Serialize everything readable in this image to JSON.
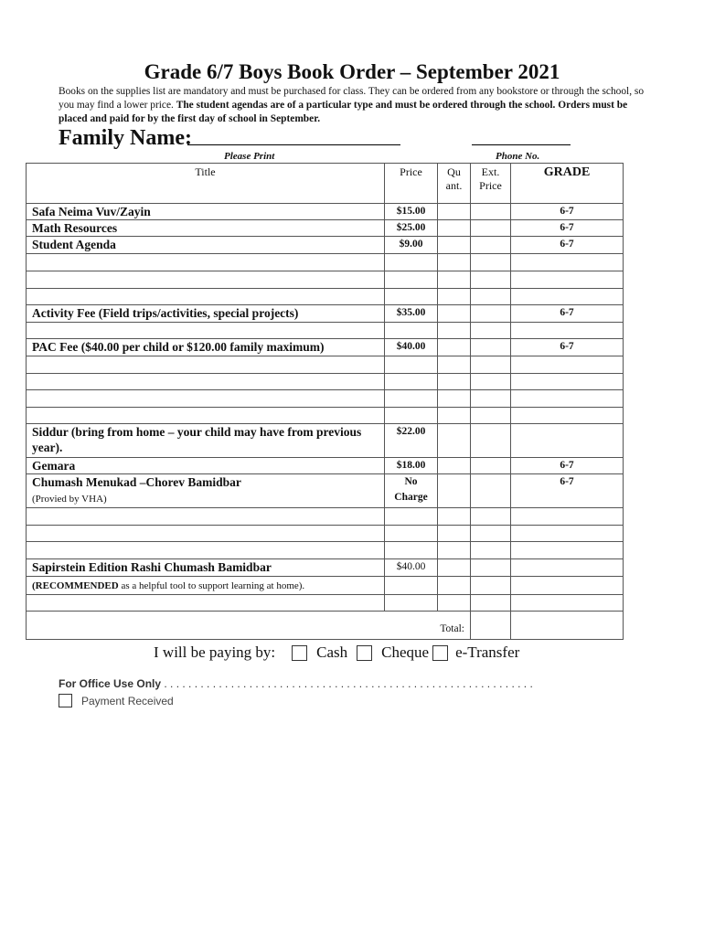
{
  "title": "Grade 6/7 Boys Book Order – September 2021",
  "intro": {
    "normal": "Books on the supplies list are mandatory and must be purchased for class.  They can be ordered from any bookstore or through the school, so you may find a lower price. ",
    "bold": "The student agendas are of a particular type and must be ordered through the school. Orders must be placed and paid for by the first day of school in September."
  },
  "family_label": "Family Name:",
  "please_print": "Please Print",
  "phone_label": "Phone No.",
  "headers": {
    "title": "Title",
    "price": "Price",
    "quant": "Qu ant.",
    "ext": "Ext. Price",
    "grade": "GRADE"
  },
  "rows": [
    {
      "title": "Safa Neima Vuv/Zayin",
      "price": "$15.00",
      "grade": "6-7"
    },
    {
      "title": "Math Resources",
      "price": "$25.00",
      "grade": "6-7"
    },
    {
      "title": "Student Agenda",
      "price": "$9.00",
      "grade": "6-7"
    },
    {},
    {},
    {},
    {
      "title": "Activity Fee (Field trips/activities, special projects)",
      "price": "$35.00",
      "grade": "6-7"
    },
    {},
    {
      "title": "PAC Fee ($40.00 per child or $120.00 family maximum)",
      "price": "$40.00",
      "grade": "6-7"
    },
    {},
    {},
    {},
    {},
    {
      "title": "Siddur (bring from home – your child may have from previous year).",
      "price": "$22.00"
    },
    {
      "title": "Gemara",
      "price": "$18.00",
      "grade": "6-7"
    },
    {
      "title": "Chumash Menukad –Chorev Bamidbar",
      "note": "(Provied by VHA)",
      "price": "No Charge",
      "grade": "6-7"
    },
    {},
    {},
    {},
    {
      "title": "Sapirstein Edition Rashi Chumash Bamidbar",
      "price": "$40.00"
    },
    {
      "note_bold": "(RECOMMENDED",
      "note": " as a helpful tool to support learning at home)."
    },
    {}
  ],
  "total_label": "Total:",
  "payment": {
    "label": "I will be paying by:",
    "options": [
      "Cash",
      "Cheque",
      "e-Transfer"
    ]
  },
  "office": {
    "label": "For Office Use Only",
    "dots": " . . . . . . . . . . . . . . . . . . . . . . . . . . . . . . . . . . . . . . . . . . . . . . . . . . . . . . . . . . . . .",
    "payment_received": "Payment Received"
  }
}
